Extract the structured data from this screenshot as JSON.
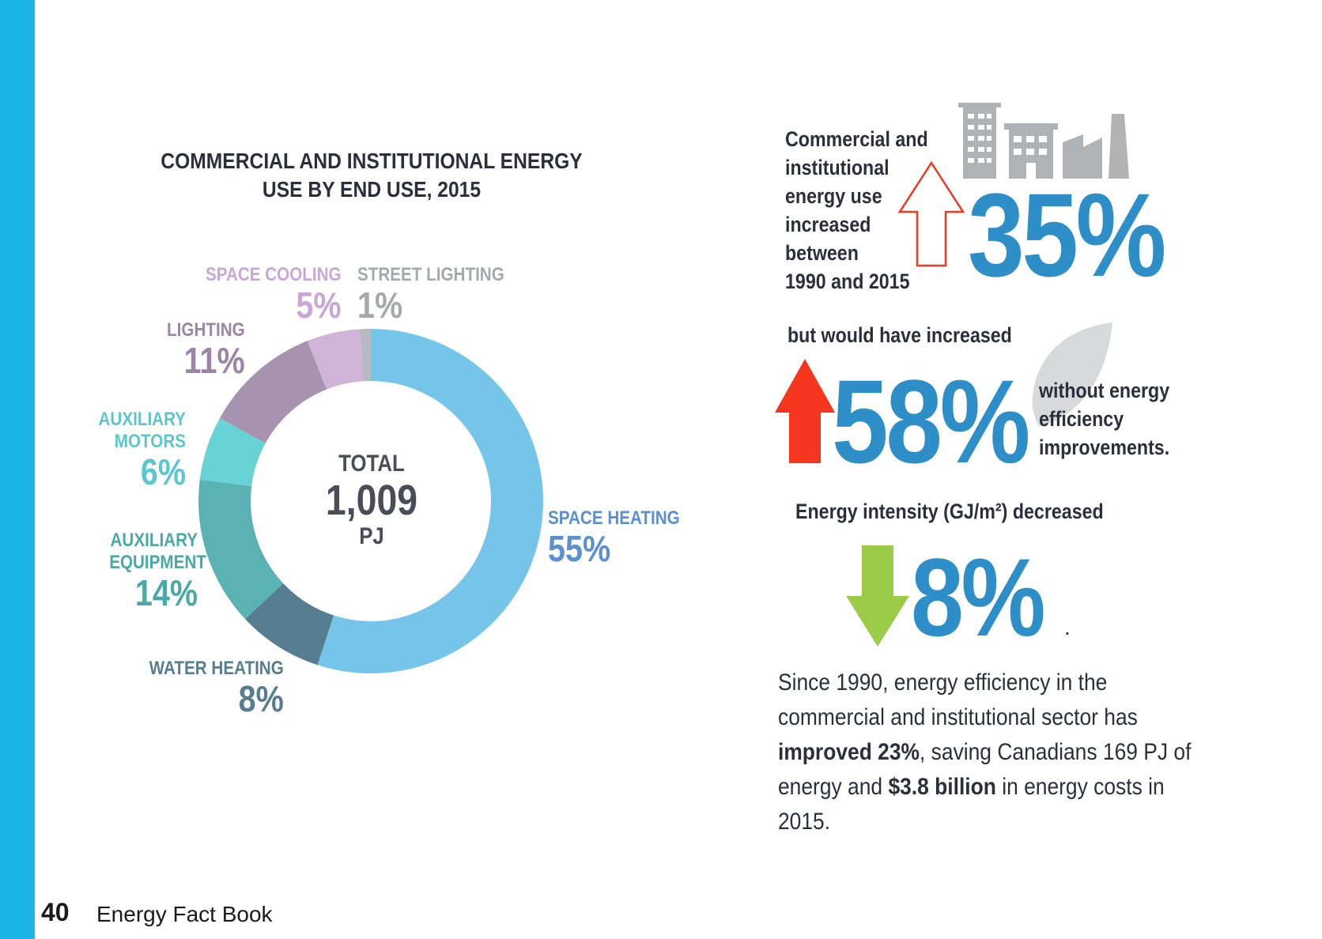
{
  "chart_data": {
    "type": "pie",
    "title": "COMMERCIAL AND INSTITUTIONAL ENERGY USE BY END USE, 2015",
    "center_label": [
      "TOTAL",
      "1,009",
      "PJ"
    ],
    "slices": [
      {
        "label": "SPACE HEATING",
        "value": 55,
        "display": "55%",
        "color": "#75c5eb",
        "text_color": "#5b8fcf"
      },
      {
        "label": "WATER HEATING",
        "value": 8,
        "display": "8%",
        "color": "#567d90",
        "text_color": "#567d90"
      },
      {
        "label": "AUXILIARY EQUIPMENT",
        "value": 14,
        "display": "14%",
        "color": "#5bb2b2",
        "text_color": "#4aa8a8"
      },
      {
        "label": "AUXILIARY MOTORS",
        "value": 6,
        "display": "6%",
        "color": "#68d3d5",
        "text_color": "#5bc6cf"
      },
      {
        "label": "LIGHTING",
        "value": 11,
        "display": "11%",
        "color": "#a792b0",
        "text_color": "#9a84a8"
      },
      {
        "label": "SPACE COOLING",
        "value": 5,
        "display": "5%",
        "color": "#d2b3d8",
        "text_color": "#c9a6d5"
      },
      {
        "label": "STREET LIGHTING",
        "value": 1,
        "display": "1%",
        "color": "#b5bac0",
        "text_color": "#a5a8ad"
      }
    ]
  },
  "stats": {
    "increase_text": [
      "Commercial and",
      "institutional",
      "energy use",
      "increased",
      "between",
      "1990 and 2015"
    ],
    "increase_value": "35%",
    "would_text": "but would have increased",
    "would_value": "58%",
    "without_text": [
      "without energy",
      "efficiency",
      "improvements."
    ],
    "intensity_text": "Energy intensity (GJ/m²) decreased",
    "intensity_value": "8%",
    "intensity_period": "."
  },
  "summary": {
    "p1": "Since 1990, energy efficiency in the commercial and institutional sector has ",
    "b1": "improved 23%",
    "p2": ", saving Canadians 169 PJ of energy and ",
    "b2": "$3.8 billion",
    "p3": " in energy costs in 2015."
  },
  "footer": {
    "page": "40",
    "title": "Energy Fact Book"
  },
  "colors": {
    "accent": "#1db4e8",
    "big_number": "#2e8fc8",
    "up_arrow": "#f4361f",
    "down_arrow": "#9ccb48",
    "icon_gray": "#b0b3b6"
  }
}
